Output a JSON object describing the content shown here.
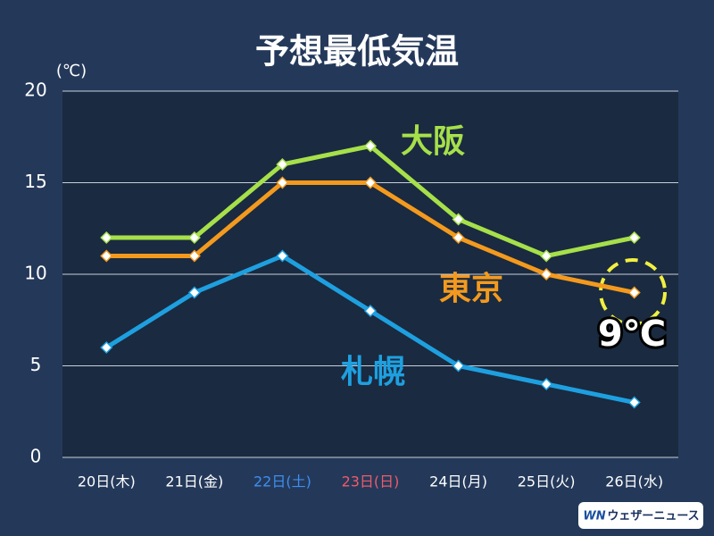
{
  "chart_data": {
    "type": "line",
    "title": "予想最低気温",
    "y_unit": "(℃)",
    "categories": [
      "20日(木)",
      "21日(金)",
      "22日(土)",
      "23日(日)",
      "24日(月)",
      "25日(火)",
      "26日(水)"
    ],
    "category_colors": [
      "#ffffff",
      "#ffffff",
      "#3f8ef0",
      "#f05a6a",
      "#ffffff",
      "#ffffff",
      "#ffffff"
    ],
    "series": [
      {
        "name": "大阪",
        "color": "#a6e04a",
        "values": [
          12,
          12,
          16,
          17,
          13,
          11,
          12
        ]
      },
      {
        "name": "東京",
        "color": "#f39a1e",
        "values": [
          11,
          11,
          15,
          15,
          12,
          10,
          9
        ]
      },
      {
        "name": "札幌",
        "color": "#1ea0e0",
        "values": [
          6,
          9,
          11,
          8,
          5,
          4,
          3
        ]
      }
    ],
    "ylim": [
      0,
      20
    ],
    "yticks": [
      0,
      5,
      10,
      15,
      20
    ],
    "grid": true,
    "annotation": "9℃",
    "logo": {
      "mark": "WN",
      "text": "ウェザーニュース"
    }
  }
}
